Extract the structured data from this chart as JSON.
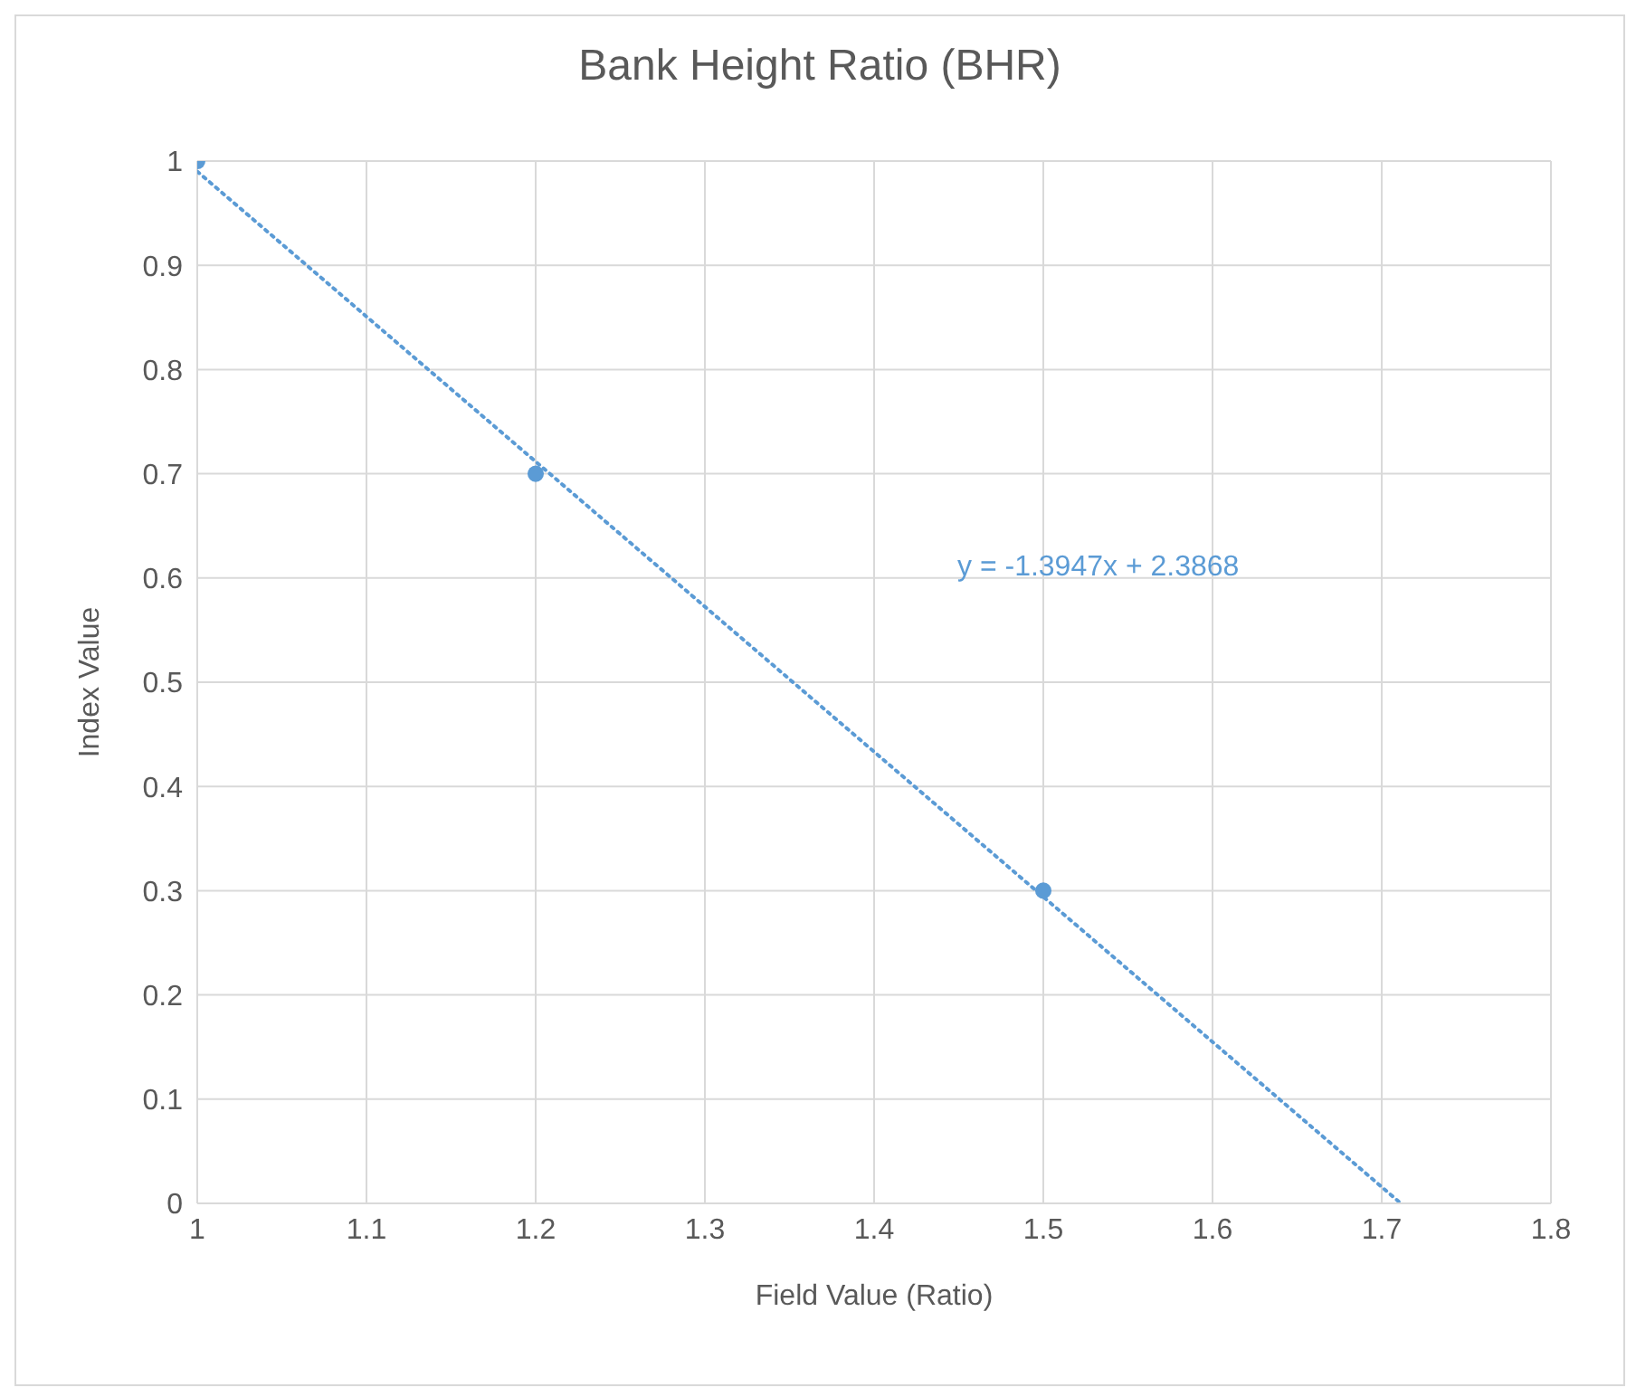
{
  "chart_data": {
    "type": "scatter",
    "title": "Bank Height Ratio (BHR)",
    "xlabel": "Field Value (Ratio)",
    "ylabel": "Index Value",
    "xlim": [
      1,
      1.8
    ],
    "xticks": [
      1,
      1.1,
      1.2,
      1.3,
      1.4,
      1.5,
      1.6,
      1.7,
      1.8
    ],
    "ylim": [
      0,
      1
    ],
    "yticks": [
      0,
      0.1,
      0.2,
      0.3,
      0.4,
      0.5,
      0.6,
      0.7,
      0.8,
      0.9,
      1
    ],
    "grid": true,
    "annotations": [
      "y = -1.3947x + 2.3868"
    ],
    "series": [
      {
        "color": "#5b9bd5",
        "x": [
          1,
          1.2,
          1.5
        ],
        "values": [
          1,
          0.7,
          0.3
        ],
        "marker": "circle"
      },
      {
        "type": "line",
        "color": "#5b9bd5",
        "x": [
          1,
          1.7113
        ],
        "values": [
          0.99,
          0
        ],
        "marker": "none",
        "line_style": "dotted"
      }
    ]
  }
}
